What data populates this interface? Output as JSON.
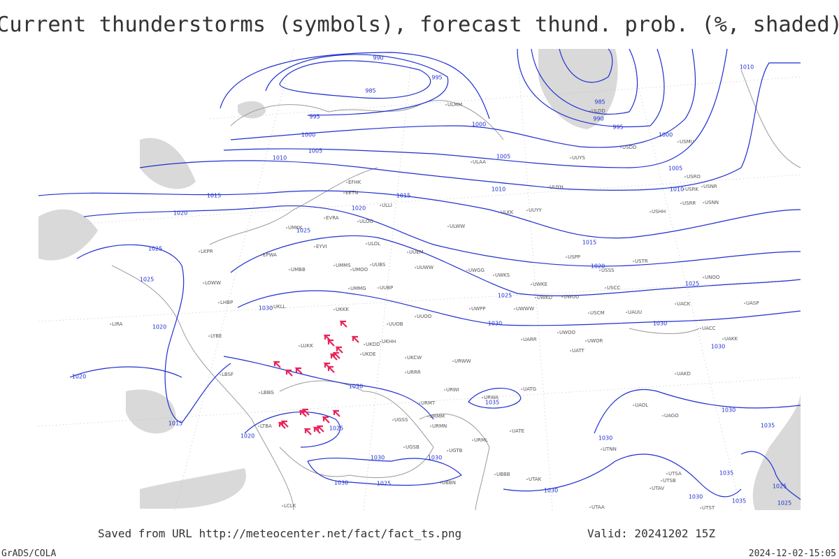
{
  "title": "Current thunderstorms (symbols), forecast thund. prob. (%, shaded)",
  "isobar_labels": [
    990,
    995,
    985,
    985,
    990,
    995,
    995,
    1000,
    1000,
    1000,
    1005,
    1005,
    1005,
    1010,
    1010,
    1010,
    1010,
    1015,
    1015,
    1015,
    1020,
    1020,
    1020,
    1025,
    1025,
    1025,
    1025,
    1025,
    1030,
    1030,
    1030,
    1030,
    1020,
    1020,
    1030,
    1035,
    1015,
    1020,
    1025,
    1030,
    1030,
    1035,
    1030,
    1030,
    1030,
    1025,
    1030,
    1030,
    1035,
    1035,
    1025,
    1025
  ],
  "station_labels": [
    "ULMM",
    "ULDD",
    "USDD",
    "USMU",
    "ULAA",
    "UUYS",
    "USRO",
    "USRK",
    "USNR",
    "UUYH",
    "ULKK",
    "UUYY",
    "USHH",
    "USRR",
    "USNN",
    "ULWW",
    "USPP",
    "USSS",
    "USTR",
    "UWKE",
    "USCC",
    "UNOO",
    "UWKD",
    "UWUU",
    "UACK",
    "UASP",
    "UWWW",
    "USCM",
    "UAUU",
    "UWPP",
    "UUOO",
    "UUOB",
    "UWOO",
    "UWOR",
    "UATT",
    "UARR",
    "UACC",
    "UAKK",
    "UAKD",
    "UATG",
    "UAOL",
    "UAGO",
    "UATE",
    "URML",
    "UTNN",
    "UTSA",
    "UTSB",
    "UTAV",
    "UTAK",
    "UTAA",
    "UTST",
    "ULOO",
    "ULOL",
    "EVRA",
    "EETN",
    "EFHK",
    "ULLI",
    "UUEM",
    "UMMS",
    "UMOO",
    "UUBS",
    "UUWW",
    "UWGG",
    "UWKS",
    "UMMG",
    "UUBP",
    "UKKK",
    "UKHH",
    "UKDD",
    "UKDE",
    "UKCW",
    "URWW",
    "URRR",
    "URWI",
    "URWA",
    "URMT",
    "URMM",
    "URMN",
    "UGSS",
    "UGSB",
    "UGTB",
    "UBBB",
    "UBBN",
    "LBBG",
    "LBSF",
    "LUKK",
    "LYBE",
    "LHBP",
    "LOWW",
    "LKPR",
    "EPWA",
    "UMBB",
    "EYVI",
    "UKLL",
    "LIRA",
    "LTBA",
    "LCLK",
    "UMKK"
  ],
  "footer": {
    "source": "Saved from URL http://meteocenter.net/fact/fact_ts.png",
    "valid": "Valid: 20241202 15Z",
    "credit": "GrADS/COLA",
    "timestamp": "2024-12-02-15:05"
  }
}
